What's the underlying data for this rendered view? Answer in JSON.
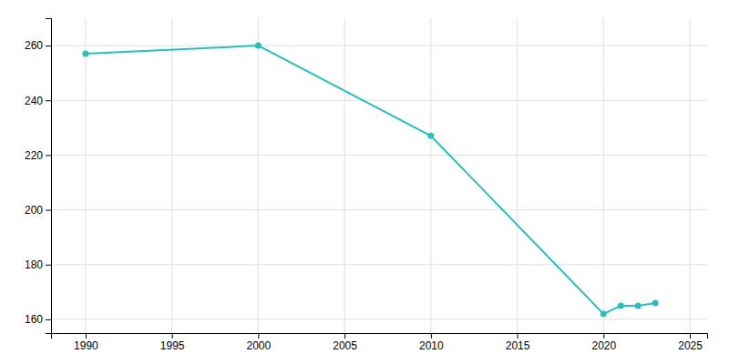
{
  "chart_data": {
    "type": "line",
    "x": [
      1990,
      2000,
      2010,
      2020,
      2021,
      2022,
      2023
    ],
    "values": [
      257,
      260,
      227,
      162,
      165,
      165,
      166
    ],
    "color": "#2abfbf",
    "marker": "circle",
    "xlim": [
      1988,
      2026
    ],
    "ylim": [
      155,
      270
    ],
    "xticks": [
      1990,
      1995,
      2000,
      2005,
      2010,
      2015,
      2020,
      2025
    ],
    "yticks": [
      160,
      180,
      200,
      220,
      240,
      260
    ],
    "grid": true
  }
}
